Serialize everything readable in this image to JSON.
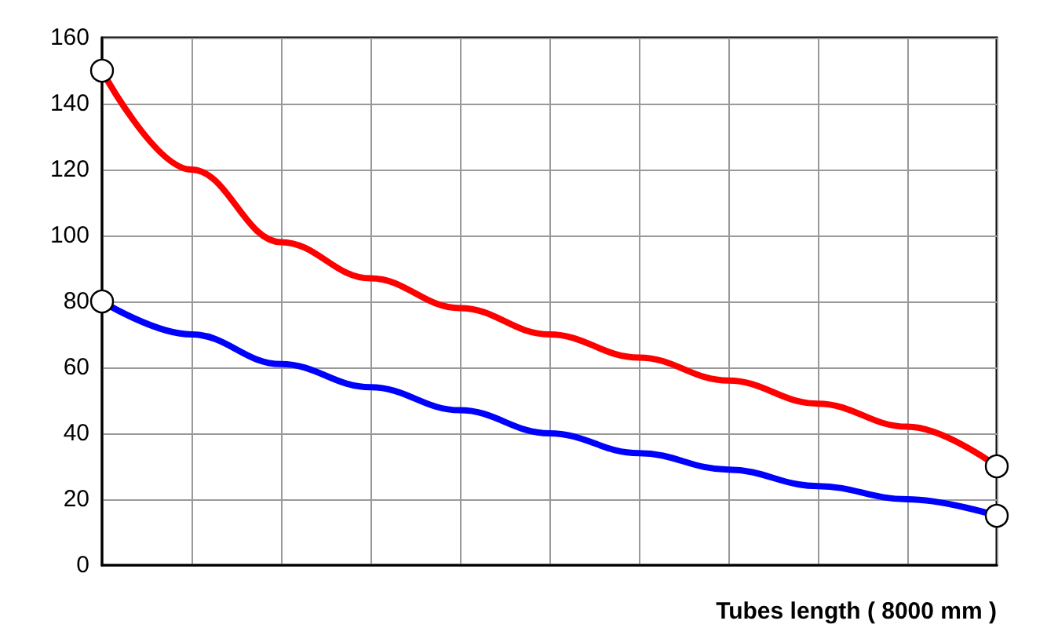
{
  "chart_data": {
    "type": "line",
    "xlabel": "Tubes length ( 8000 mm )",
    "categories": [
      null,
      null,
      null,
      null,
      null,
      null,
      null,
      null,
      null,
      null,
      null
    ],
    "series": [
      {
        "color": "#ff0000",
        "values": [
          150,
          120,
          98,
          87,
          78,
          70,
          63,
          56,
          49,
          42,
          30
        ]
      },
      {
        "color": "#0000ff",
        "values": [
          80,
          70,
          61,
          54,
          47,
          40,
          34,
          29,
          24,
          20,
          15
        ]
      }
    ],
    "ylim": [
      0,
      160
    ],
    "yticks": [
      0,
      20,
      40,
      60,
      80,
      100,
      120,
      140,
      160
    ],
    "grid": true
  }
}
